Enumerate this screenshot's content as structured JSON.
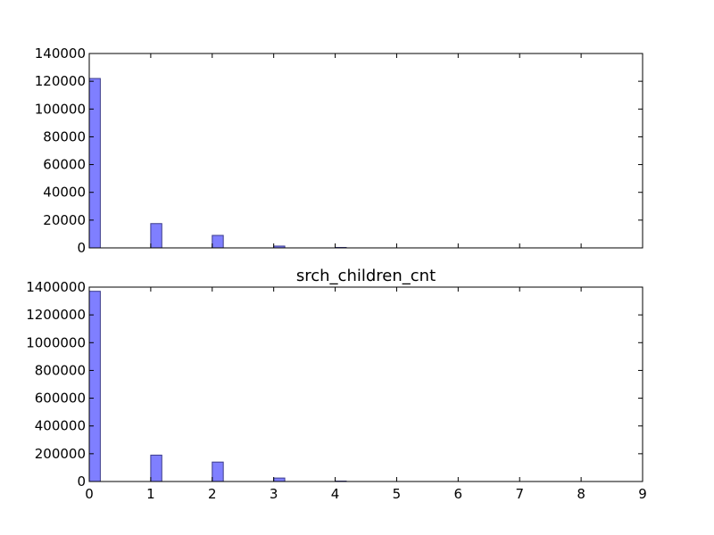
{
  "chart_data": [
    {
      "type": "bar",
      "title": "",
      "xlabel": "",
      "ylabel": "",
      "xlim": [
        0,
        9
      ],
      "ylim": [
        0,
        140000
      ],
      "x_ticks": [
        0,
        1,
        2,
        3,
        4,
        5,
        6,
        7,
        8,
        9
      ],
      "x_tick_labels_visible": false,
      "y_ticks": [
        0,
        20000,
        40000,
        60000,
        80000,
        100000,
        120000,
        140000
      ],
      "y_tick_labels": [
        "0",
        "20000",
        "40000",
        "60000",
        "80000",
        "100000",
        "120000",
        "140000"
      ],
      "bar_width": 0.18,
      "bar_color": "#7f7fff",
      "bar_edge_color": "#3c3c8c",
      "grid": false,
      "series": [
        {
          "x": [
            0,
            1,
            2,
            3,
            4
          ],
          "values": [
            122000,
            17500,
            9000,
            1300,
            300
          ]
        }
      ]
    },
    {
      "type": "bar",
      "title": "srch_children_cnt",
      "xlabel": "",
      "ylabel": "",
      "xlim": [
        0,
        9
      ],
      "ylim": [
        0,
        1400000
      ],
      "x_ticks": [
        0,
        1,
        2,
        3,
        4,
        5,
        6,
        7,
        8,
        9
      ],
      "x_tick_labels": [
        "0",
        "1",
        "2",
        "3",
        "4",
        "5",
        "6",
        "7",
        "8",
        "9"
      ],
      "x_tick_labels_visible": true,
      "y_ticks": [
        0,
        200000,
        400000,
        600000,
        800000,
        1000000,
        1200000,
        1400000
      ],
      "y_tick_labels": [
        "0",
        "200000",
        "400000",
        "600000",
        "800000",
        "1000000",
        "1200000",
        "1400000"
      ],
      "bar_width": 0.18,
      "bar_color": "#7f7fff",
      "bar_edge_color": "#3c3c8c",
      "grid": false,
      "series": [
        {
          "x": [
            0,
            1,
            2,
            3,
            4
          ],
          "values": [
            1370000,
            190000,
            140000,
            25000,
            3000
          ]
        }
      ]
    }
  ]
}
